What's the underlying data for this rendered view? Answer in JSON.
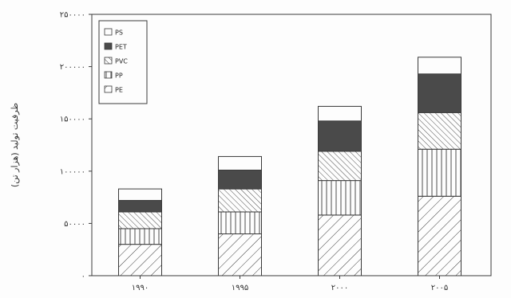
{
  "chart_data": {
    "type": "bar",
    "stacked": true,
    "categories": [
      "۱۹۹۰",
      "۱۹۹۵",
      "۲۰۰۰",
      "۲۰۰۵"
    ],
    "ylabel": "ظرفیت تولید (هزار تن)",
    "ylim": [
      0,
      250000
    ],
    "yticks": [
      0,
      50000,
      100000,
      150000,
      200000,
      250000
    ],
    "ytick_labels": [
      "۰",
      "۵۰۰۰۰",
      "۱۰۰۰۰۰",
      "۱۵۰۰۰۰",
      "۲۰۰۰۰۰",
      "۲۵۰۰۰۰"
    ],
    "grid": false,
    "legend_position": "top-left",
    "series": [
      {
        "name": "PE",
        "pattern": "diag",
        "values": [
          30000,
          40000,
          58000,
          76000
        ]
      },
      {
        "name": "PP",
        "pattern": "vert",
        "values": [
          15000,
          21000,
          33000,
          45000
        ]
      },
      {
        "name": "PVC",
        "pattern": "back",
        "values": [
          16000,
          22000,
          28000,
          35000
        ]
      },
      {
        "name": "PET",
        "pattern": "solid",
        "values": [
          11000,
          18000,
          29000,
          37000
        ]
      },
      {
        "name": "PS",
        "pattern": "white",
        "values": [
          11000,
          13000,
          14000,
          16000
        ]
      }
    ],
    "legend_order": [
      "PS",
      "PET",
      "PVC",
      "PP",
      "PE"
    ]
  },
  "colors": {
    "ink": "#3a3a3a",
    "solid_fill": "#4a4a4a",
    "background": "#fdfdfd"
  }
}
